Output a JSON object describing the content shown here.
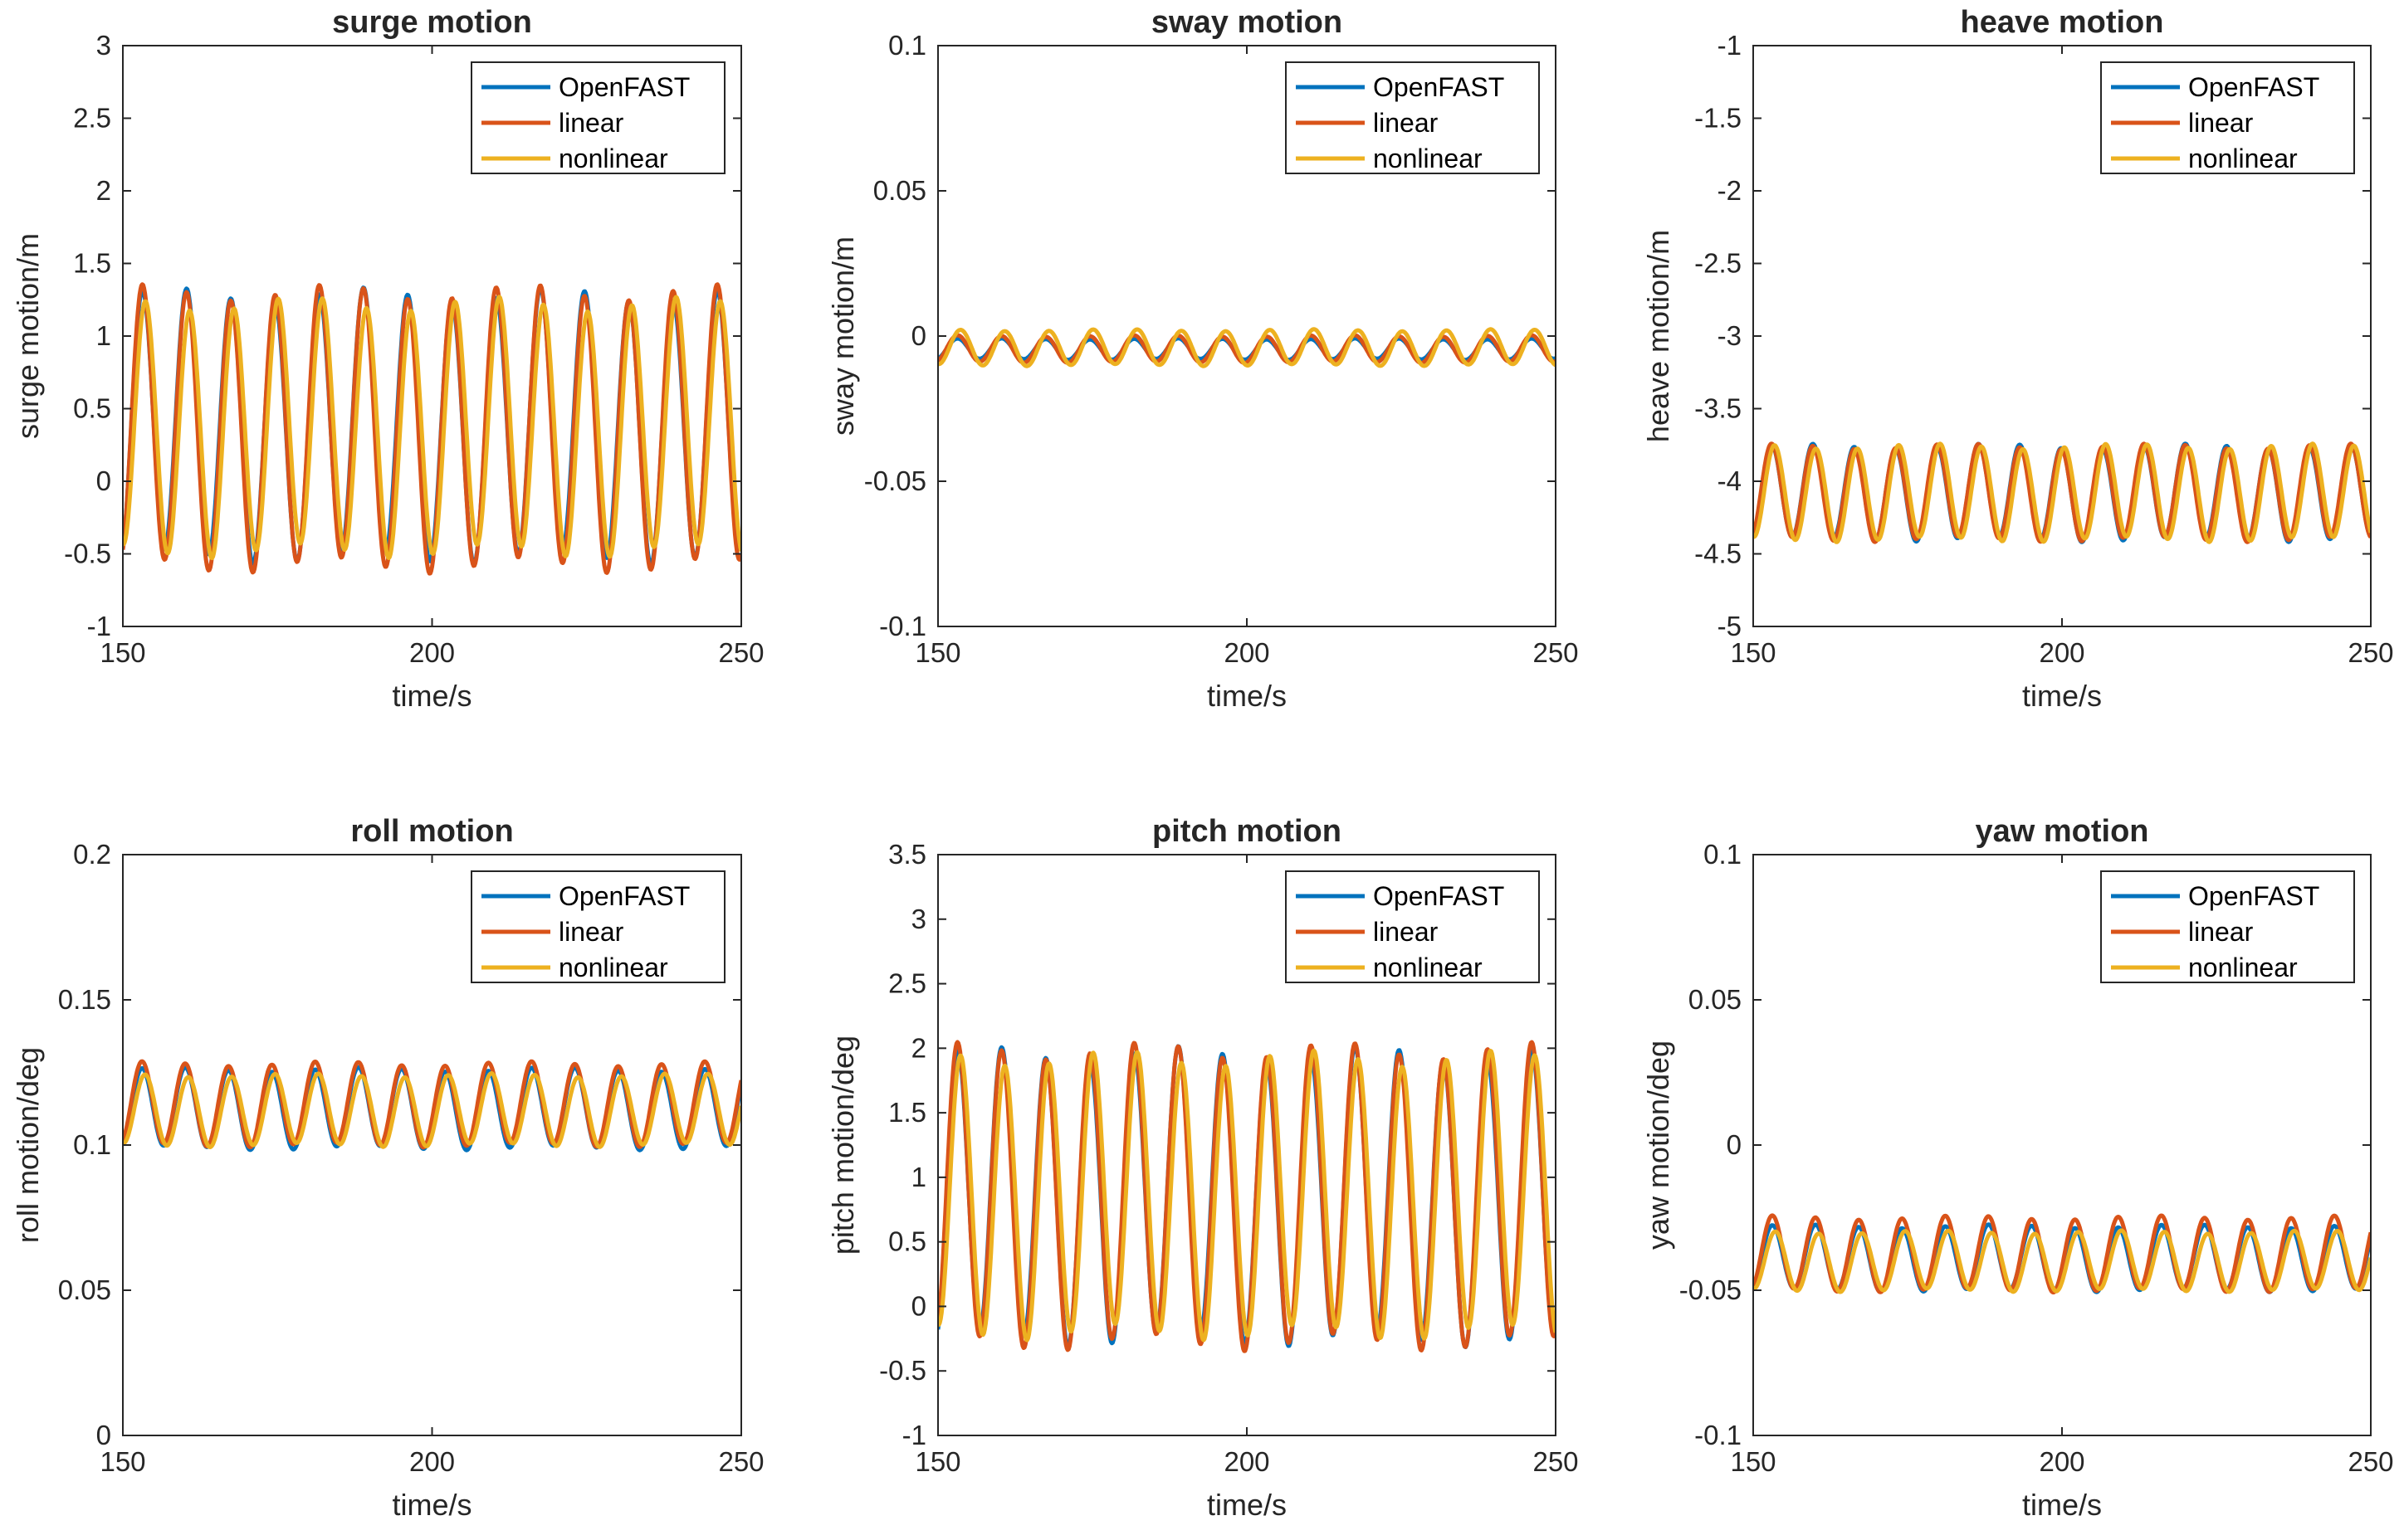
{
  "legend": {
    "entries": [
      "OpenFAST",
      "linear",
      "nonlinear"
    ],
    "placement": "top-right"
  },
  "series_colors": [
    "#0072BD",
    "#D95319",
    "#EDB120"
  ],
  "chart_data": [
    {
      "type": "line",
      "title": "surge motion",
      "xlabel": "time/s",
      "ylabel": "surge motion/m",
      "xlim": [
        150,
        250
      ],
      "ylim": [
        -1,
        3
      ],
      "xticks": [
        "150",
        "200",
        "250"
      ],
      "yticks": [
        "-1",
        "-0.5",
        "0",
        "0.5",
        "1",
        "1.5",
        "2",
        "2.5",
        "3"
      ],
      "wave": {
        "mean": 0.36,
        "amplitude": 0.9,
        "period": 7.15
      },
      "series": [
        {
          "name": "OpenFAST",
          "peak": 1.28,
          "trough": -0.52
        },
        {
          "name": "linear",
          "peak": 1.3,
          "trough": -0.58
        },
        {
          "name": "nonlinear",
          "peak": 1.22,
          "trough": -0.48
        }
      ]
    },
    {
      "type": "line",
      "title": "sway motion",
      "xlabel": "time/s",
      "ylabel": "sway motion/m",
      "xlim": [
        150,
        250
      ],
      "ylim": [
        -0.1,
        0.1
      ],
      "xticks": [
        "150",
        "200",
        "250"
      ],
      "yticks": [
        "-0.1",
        "-0.05",
        "0",
        "0.05",
        "0.1"
      ],
      "wave": {
        "mean": -0.004,
        "amplitude": 0.004,
        "period": 7.15
      },
      "series": [
        {
          "name": "OpenFAST",
          "peak": -0.001,
          "trough": -0.008
        },
        {
          "name": "linear",
          "peak": 0.0,
          "trough": -0.009
        },
        {
          "name": "nonlinear",
          "peak": 0.002,
          "trough": -0.01
        }
      ]
    },
    {
      "type": "line",
      "title": "heave motion",
      "xlabel": "time/s",
      "ylabel": "heave motion/m",
      "xlim": [
        150,
        250
      ],
      "ylim": [
        -5,
        -1
      ],
      "xticks": [
        "150",
        "200",
        "250"
      ],
      "yticks": [
        "-5",
        "-4.5",
        "-4",
        "-3.5",
        "-3",
        "-2.5",
        "-2",
        "-1.5",
        "-1"
      ],
      "wave": {
        "mean": -4.08,
        "amplitude": 0.32,
        "period": 6.7
      },
      "series": [
        {
          "name": "OpenFAST",
          "peak": -3.76,
          "trough": -4.4
        },
        {
          "name": "linear",
          "peak": -3.76,
          "trough": -4.4
        },
        {
          "name": "nonlinear",
          "peak": -3.76,
          "trough": -4.4
        }
      ]
    },
    {
      "type": "line",
      "title": "roll motion",
      "xlabel": "time/s",
      "ylabel": "roll motion/deg",
      "xlim": [
        150,
        250
      ],
      "ylim": [
        0,
        0.2
      ],
      "xticks": [
        "150",
        "200",
        "250"
      ],
      "yticks": [
        "0",
        "0.05",
        "0.1",
        "0.15",
        "0.2"
      ],
      "wave": {
        "mean": 0.113,
        "amplitude": 0.012,
        "period": 7.0
      },
      "series": [
        {
          "name": "OpenFAST",
          "peak": 0.126,
          "trough": 0.099
        },
        {
          "name": "linear",
          "peak": 0.128,
          "trough": 0.1
        },
        {
          "name": "nonlinear",
          "peak": 0.124,
          "trough": 0.1
        }
      ]
    },
    {
      "type": "line",
      "title": "pitch motion",
      "xlabel": "time/s",
      "ylabel": "pitch motion/deg",
      "xlim": [
        150,
        250
      ],
      "ylim": [
        -1,
        3.5
      ],
      "xticks": [
        "150",
        "200",
        "250"
      ],
      "yticks": [
        "-1",
        "-0.5",
        "0",
        "0.5",
        "1",
        "1.5",
        "2",
        "2.5",
        "3",
        "3.5"
      ],
      "wave": {
        "mean": 0.83,
        "amplitude": 1.1,
        "period": 7.15
      },
      "series": [
        {
          "name": "OpenFAST",
          "peak": 1.95,
          "trough": -0.25
        },
        {
          "name": "linear",
          "peak": 1.98,
          "trough": -0.28
        },
        {
          "name": "nonlinear",
          "peak": 1.92,
          "trough": -0.2
        }
      ]
    },
    {
      "type": "line",
      "title": "yaw motion",
      "xlabel": "time/s",
      "ylabel": "yaw motion/deg",
      "xlim": [
        150,
        250
      ],
      "ylim": [
        -0.1,
        0.1
      ],
      "xticks": [
        "150",
        "200",
        "250"
      ],
      "yticks": [
        "-0.1",
        "-0.05",
        "0",
        "0.05",
        "0.1"
      ],
      "wave": {
        "mean": -0.04,
        "amplitude": 0.004,
        "period": 7.0
      },
      "series": [
        {
          "name": "OpenFAST",
          "peak": -0.028,
          "trough": -0.05
        },
        {
          "name": "linear",
          "peak": -0.025,
          "trough": -0.05
        },
        {
          "name": "nonlinear",
          "peak": -0.03,
          "trough": -0.05
        }
      ]
    }
  ]
}
